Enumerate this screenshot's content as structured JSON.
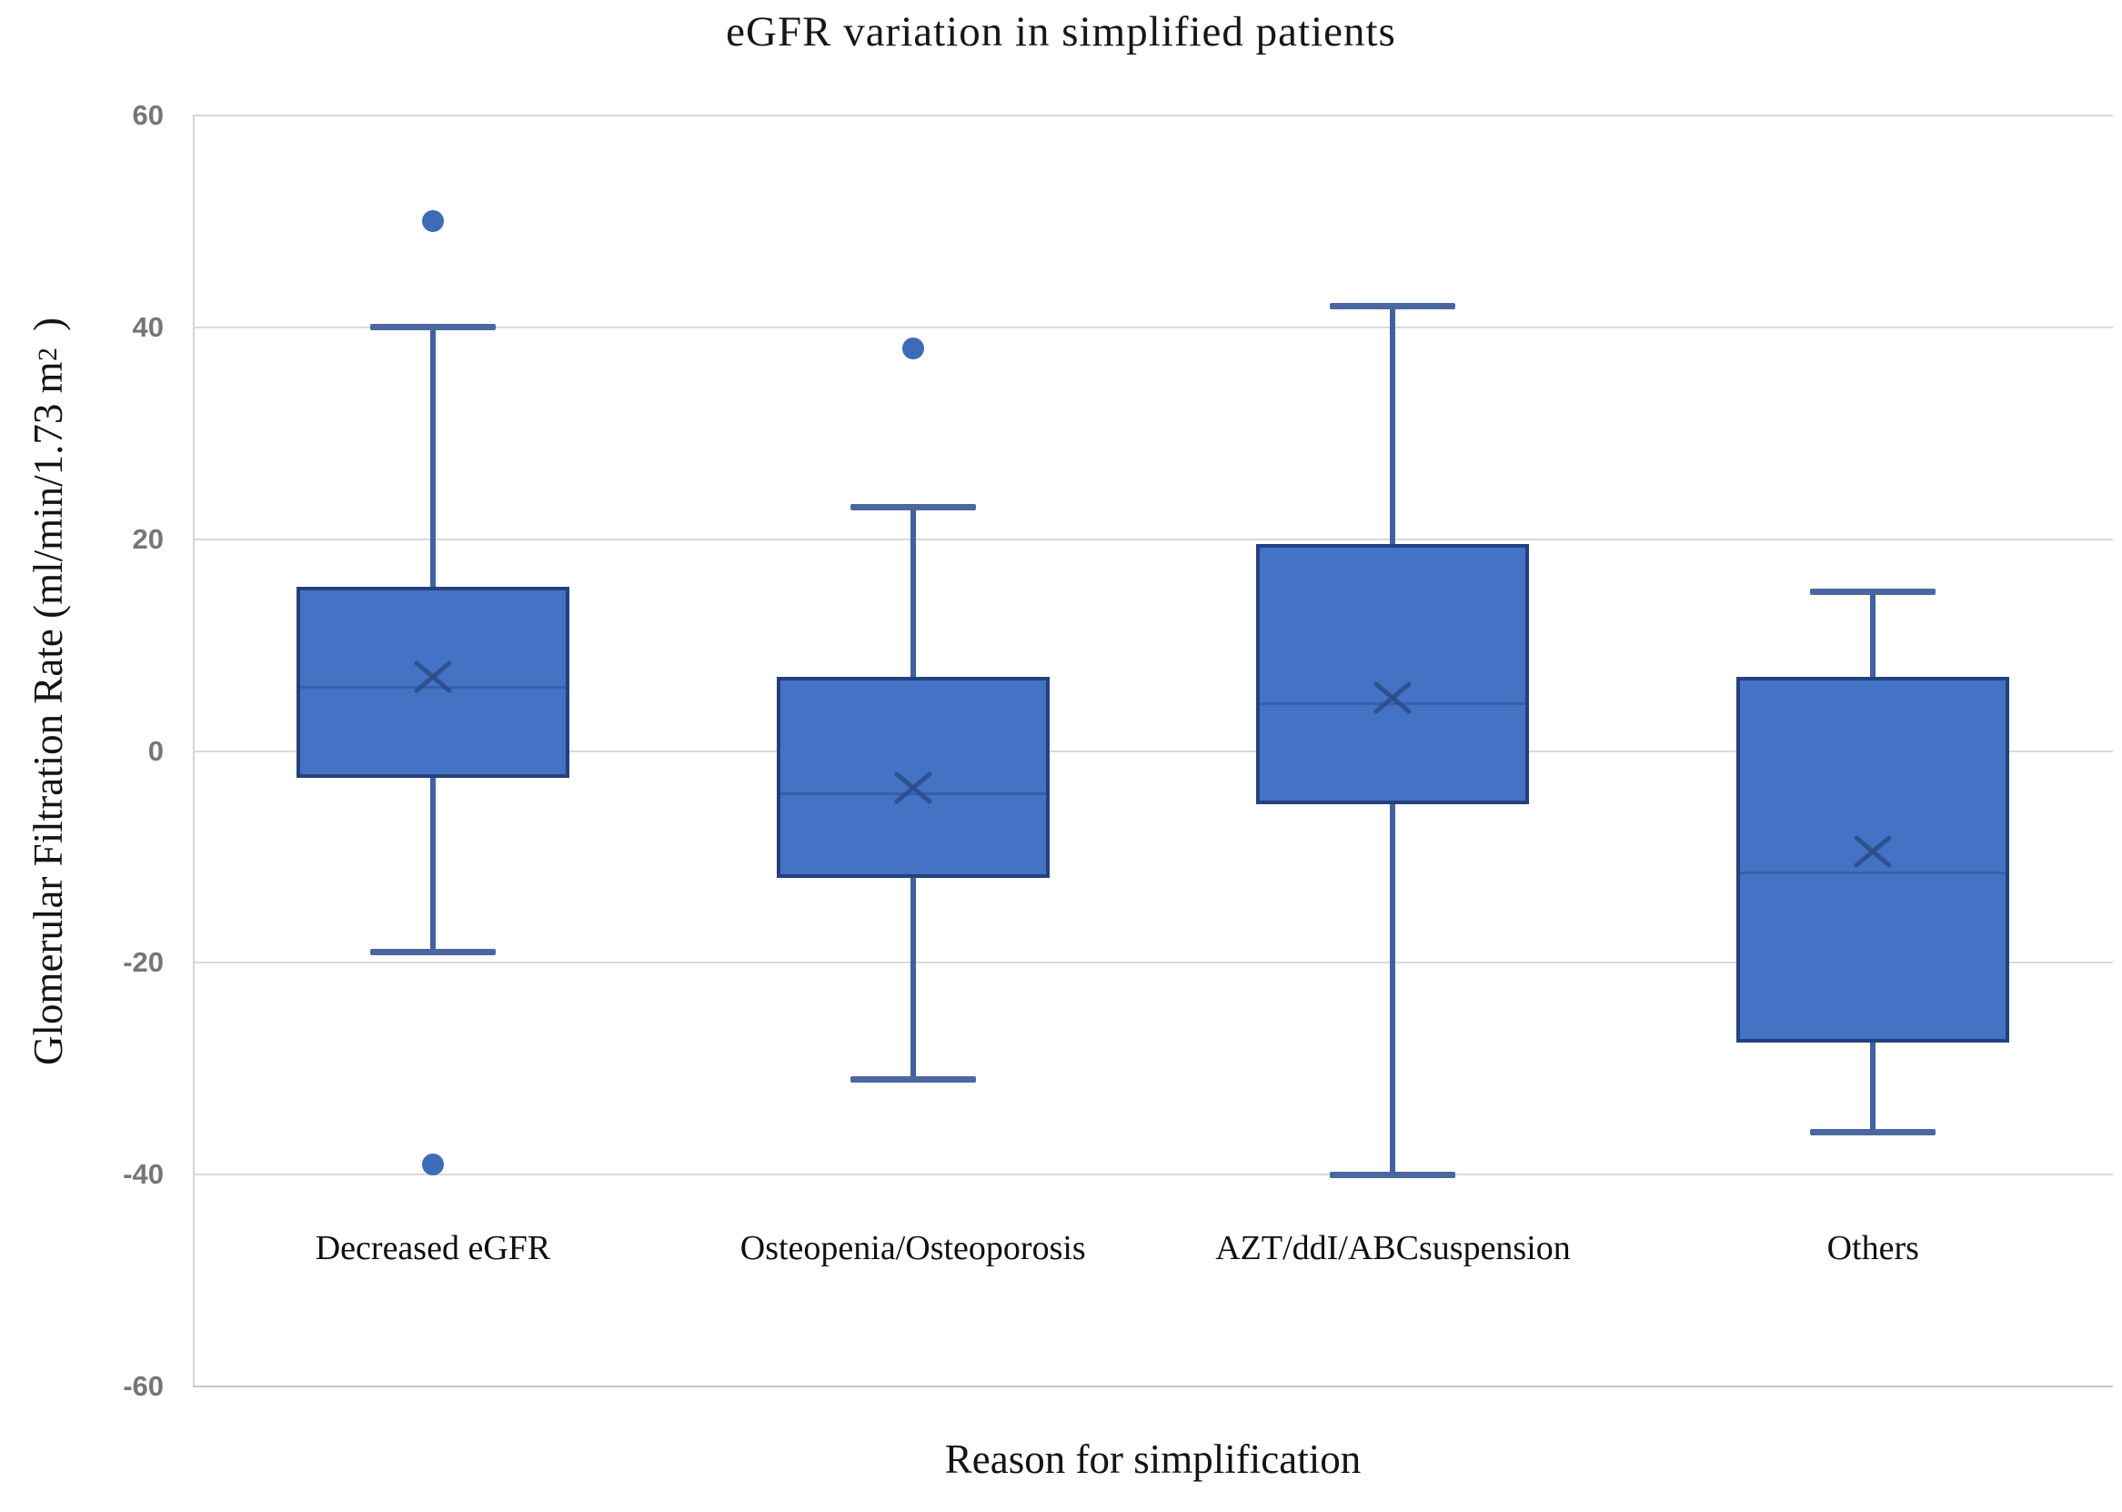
{
  "title": "eGFR variation in simplified patients",
  "y_axis": {
    "title_main": "Glomerular Filtration Rate (ml/min/1.73 m",
    "title_sup": "2",
    "title_close": ")"
  },
  "x_axis": {
    "title": "Reason for simplification"
  },
  "colors": {
    "box_fill": "#4472c4",
    "box_border": "#24417e",
    "whisker": "#3f62a0",
    "whisker_cap": "#4a689f",
    "median": "#3660a8",
    "mean_marker": "#2b4c86",
    "outlier": "#3e6ab8",
    "gridline": "#d9d9d9",
    "tick_text": "#767676",
    "text": "#141414"
  },
  "chart_data": {
    "type": "boxplot",
    "title": "eGFR variation in simplified patients",
    "xlabel": "Reason for simplification",
    "ylabel": "Glomerular Filtration Rate (ml/min/1.73 m²)",
    "ylim": [
      -60,
      60
    ],
    "yticks": [
      60,
      40,
      20,
      0,
      -20,
      -40,
      -60
    ],
    "grid": "horizontal",
    "legend": "none",
    "categories": [
      "Decreased eGFR",
      "Osteopenia/Osteoporosis",
      "AZT/ddI/ABCsuspension",
      "Others"
    ],
    "boxes": [
      {
        "category": "Decreased eGFR",
        "whisker_low": -19,
        "q1": -2.5,
        "median": 6,
        "mean": 7,
        "q3": 15.5,
        "whisker_high": 40,
        "outliers": [
          50,
          -39
        ]
      },
      {
        "category": "Osteopenia/Osteoporosis",
        "whisker_low": -31,
        "q1": -12,
        "median": -4,
        "mean": -3.5,
        "q3": 7,
        "whisker_high": 23,
        "outliers": [
          38
        ]
      },
      {
        "category": "AZT/ddI/ABCsuspension",
        "whisker_low": -40,
        "q1": -5,
        "median": 4.5,
        "mean": 5,
        "q3": 19.5,
        "whisker_high": 42,
        "outliers": []
      },
      {
        "category": "Others",
        "whisker_low": -36,
        "q1": -27.5,
        "median": -11.5,
        "mean": -9.5,
        "q3": 7,
        "whisker_high": 15,
        "outliers": []
      }
    ]
  }
}
